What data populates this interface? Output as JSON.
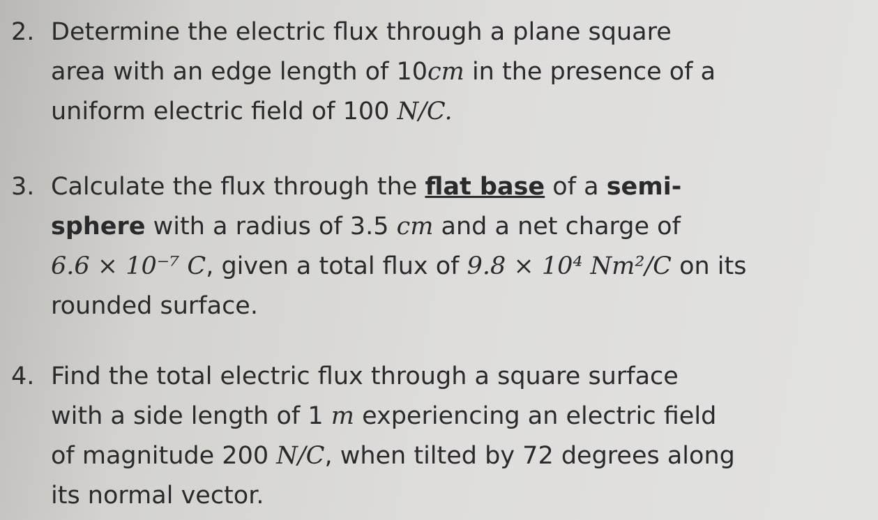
{
  "problems": [
    {
      "number": "2.",
      "lines": [
        [
          {
            "text": "Determine the electric flux through a plane square",
            "style": "normal"
          }
        ],
        [
          {
            "text": "area with an edge length of 10",
            "style": "normal"
          },
          {
            "text": "cm",
            "style": "math"
          },
          {
            "text": " in the presence of a",
            "style": "normal"
          }
        ],
        [
          {
            "text": "uniform electric field of 100 ",
            "style": "normal"
          },
          {
            "text": "N/C.",
            "style": "math"
          }
        ]
      ]
    },
    {
      "number": "3.",
      "lines": [
        [
          {
            "text": "Calculate the flux through the ",
            "style": "normal"
          },
          {
            "text": "flat base",
            "style": "bold-underline"
          },
          {
            "text": " of a ",
            "style": "normal"
          },
          {
            "text": "semi-",
            "style": "bold"
          }
        ],
        [
          {
            "text": "sphere",
            "style": "bold"
          },
          {
            "text": " with a radius of 3.5 ",
            "style": "normal"
          },
          {
            "text": "cm",
            "style": "math"
          },
          {
            "text": " and a net charge of",
            "style": "normal"
          }
        ],
        [
          {
            "text": "6.6 × 10⁻⁷ C",
            "style": "math"
          },
          {
            "text": ", given a total flux of ",
            "style": "normal"
          },
          {
            "text": "9.8 × 10⁴ Nm²/C",
            "style": "math"
          },
          {
            "text": " on its",
            "style": "normal"
          }
        ],
        [
          {
            "text": "rounded surface.",
            "style": "normal"
          }
        ]
      ]
    },
    {
      "number": "4.",
      "lines": [
        [
          {
            "text": "Find the total electric flux through a square surface",
            "style": "normal"
          }
        ],
        [
          {
            "text": "with a side length of 1 ",
            "style": "normal"
          },
          {
            "text": "m",
            "style": "math"
          },
          {
            "text": " experiencing an electric field",
            "style": "normal"
          }
        ],
        [
          {
            "text": "of magnitude 200 ",
            "style": "normal"
          },
          {
            "text": "N/C",
            "style": "math"
          },
          {
            "text": ", when tilted by 72 degrees along",
            "style": "normal"
          }
        ],
        [
          {
            "text": "its normal vector.",
            "style": "normal"
          }
        ]
      ]
    }
  ]
}
